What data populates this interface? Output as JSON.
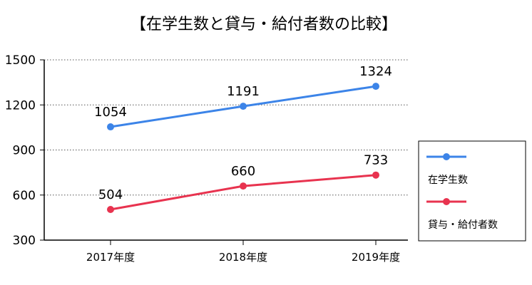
{
  "chart_data": {
    "type": "line",
    "title": "【在学生数と貸与・給付者数の比較】",
    "categories": [
      "2017年度",
      "2018年度",
      "2019年度"
    ],
    "ylim": [
      300,
      1500
    ],
    "yticks": [
      300,
      600,
      900,
      1200,
      1500
    ],
    "grid": "horizontal-dotted",
    "legend_position": "right",
    "series": [
      {
        "name": "在学生数",
        "values": [
          1054,
          1191,
          1324
        ],
        "color": "#3c84e8"
      },
      {
        "name": "貸与・給付者数",
        "values": [
          504,
          660,
          733
        ],
        "color": "#e8334f"
      }
    ]
  }
}
